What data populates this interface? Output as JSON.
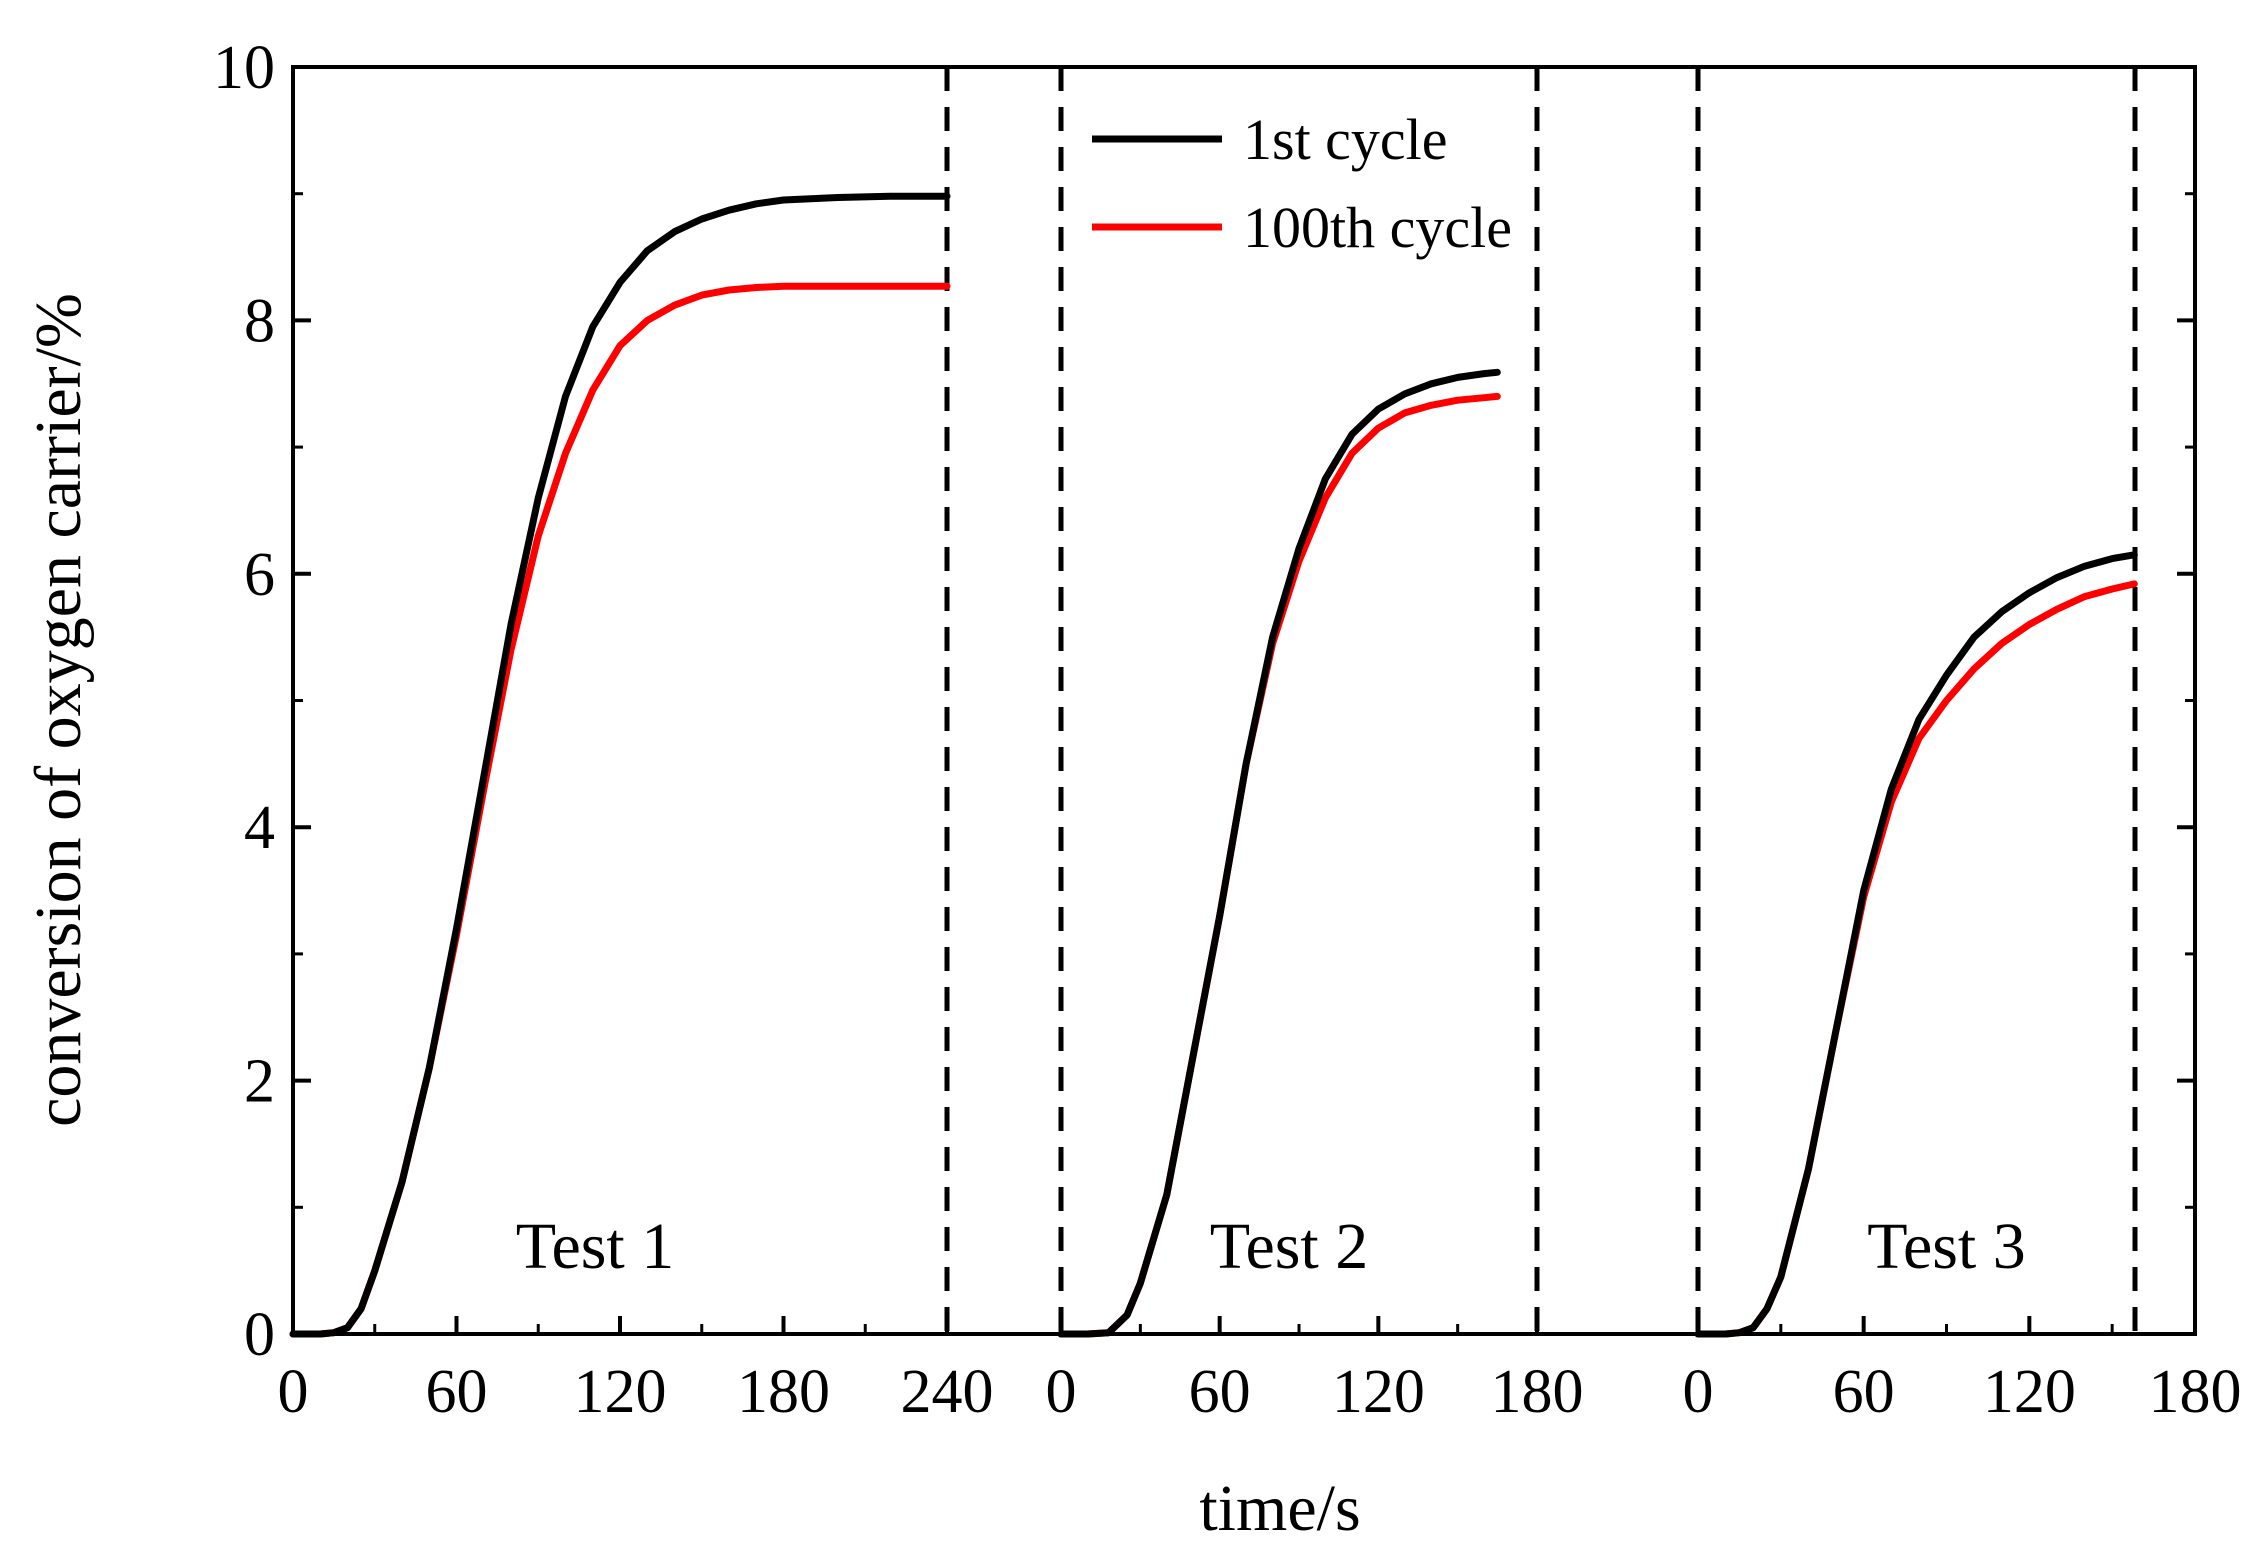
{
  "chart_data": {
    "type": "line",
    "xlabel": "time/s",
    "ylabel": "conversion of oxygen carrier/%",
    "ylim": [
      0,
      10
    ],
    "yticks": [
      0,
      2,
      4,
      6,
      8,
      10
    ],
    "legend": {
      "placement": "top-center",
      "entries": [
        {
          "name": "1st cycle",
          "color": "#000000"
        },
        {
          "name": "100th cycle",
          "color": "#ff0000"
        }
      ]
    },
    "panels": [
      {
        "label": "Test 1",
        "xlim": [
          0,
          240
        ],
        "xticks": [
          0,
          60,
          120,
          180,
          240
        ],
        "series": [
          {
            "name": "1st cycle",
            "color": "#000000",
            "points": [
              [
                0,
                0
              ],
              [
                10,
                0
              ],
              [
                15,
                0.01
              ],
              [
                20,
                0.05
              ],
              [
                25,
                0.2
              ],
              [
                30,
                0.5
              ],
              [
                40,
                1.2
              ],
              [
                50,
                2.1
              ],
              [
                60,
                3.2
              ],
              [
                70,
                4.4
              ],
              [
                80,
                5.6
              ],
              [
                90,
                6.6
              ],
              [
                100,
                7.4
              ],
              [
                110,
                7.95
              ],
              [
                120,
                8.3
              ],
              [
                130,
                8.55
              ],
              [
                140,
                8.7
              ],
              [
                150,
                8.8
              ],
              [
                160,
                8.87
              ],
              [
                170,
                8.92
              ],
              [
                180,
                8.95
              ],
              [
                200,
                8.97
              ],
              [
                220,
                8.98
              ],
              [
                240,
                8.98
              ]
            ]
          },
          {
            "name": "100th cycle",
            "color": "#ff0000",
            "points": [
              [
                0,
                0
              ],
              [
                10,
                0
              ],
              [
                15,
                0.01
              ],
              [
                20,
                0.05
              ],
              [
                25,
                0.2
              ],
              [
                30,
                0.5
              ],
              [
                40,
                1.2
              ],
              [
                50,
                2.1
              ],
              [
                60,
                3.15
              ],
              [
                70,
                4.3
              ],
              [
                80,
                5.4
              ],
              [
                90,
                6.3
              ],
              [
                100,
                6.95
              ],
              [
                110,
                7.45
              ],
              [
                120,
                7.8
              ],
              [
                130,
                8.0
              ],
              [
                140,
                8.12
              ],
              [
                150,
                8.2
              ],
              [
                160,
                8.24
              ],
              [
                170,
                8.26
              ],
              [
                180,
                8.27
              ],
              [
                200,
                8.27
              ],
              [
                240,
                8.27
              ]
            ]
          }
        ]
      },
      {
        "label": "Test 2",
        "xlim": [
          0,
          180
        ],
        "xticks": [
          0,
          60,
          120,
          180
        ],
        "series": [
          {
            "name": "1st cycle",
            "color": "#000000",
            "points": [
              [
                0,
                0
              ],
              [
                10,
                0
              ],
              [
                18,
                0.01
              ],
              [
                25,
                0.15
              ],
              [
                30,
                0.4
              ],
              [
                40,
                1.1
              ],
              [
                50,
                2.2
              ],
              [
                60,
                3.3
              ],
              [
                70,
                4.5
              ],
              [
                80,
                5.5
              ],
              [
                90,
                6.2
              ],
              [
                100,
                6.75
              ],
              [
                110,
                7.1
              ],
              [
                120,
                7.3
              ],
              [
                130,
                7.42
              ],
              [
                140,
                7.5
              ],
              [
                150,
                7.55
              ],
              [
                160,
                7.58
              ],
              [
                165,
                7.59
              ]
            ]
          },
          {
            "name": "100th cycle",
            "color": "#ff0000",
            "points": [
              [
                0,
                0
              ],
              [
                10,
                0
              ],
              [
                18,
                0.01
              ],
              [
                25,
                0.15
              ],
              [
                30,
                0.4
              ],
              [
                40,
                1.1
              ],
              [
                50,
                2.2
              ],
              [
                60,
                3.3
              ],
              [
                70,
                4.5
              ],
              [
                80,
                5.45
              ],
              [
                90,
                6.1
              ],
              [
                100,
                6.6
              ],
              [
                110,
                6.95
              ],
              [
                120,
                7.15
              ],
              [
                130,
                7.27
              ],
              [
                140,
                7.33
              ],
              [
                150,
                7.37
              ],
              [
                160,
                7.39
              ],
              [
                165,
                7.4
              ]
            ]
          }
        ]
      },
      {
        "label": "Test 3",
        "xlim": [
          0,
          180
        ],
        "xticks": [
          0,
          60,
          120,
          180
        ],
        "series": [
          {
            "name": "1st cycle",
            "color": "#000000",
            "points": [
              [
                0,
                0
              ],
              [
                10,
                0
              ],
              [
                15,
                0.01
              ],
              [
                20,
                0.05
              ],
              [
                25,
                0.2
              ],
              [
                30,
                0.45
              ],
              [
                40,
                1.3
              ],
              [
                50,
                2.4
              ],
              [
                60,
                3.5
              ],
              [
                70,
                4.3
              ],
              [
                80,
                4.85
              ],
              [
                90,
                5.2
              ],
              [
                100,
                5.5
              ],
              [
                110,
                5.7
              ],
              [
                120,
                5.85
              ],
              [
                130,
                5.97
              ],
              [
                140,
                6.06
              ],
              [
                150,
                6.12
              ],
              [
                158,
                6.15
              ]
            ]
          },
          {
            "name": "100th cycle",
            "color": "#ff0000",
            "points": [
              [
                0,
                0
              ],
              [
                10,
                0
              ],
              [
                15,
                0.01
              ],
              [
                20,
                0.05
              ],
              [
                25,
                0.2
              ],
              [
                30,
                0.45
              ],
              [
                40,
                1.3
              ],
              [
                50,
                2.4
              ],
              [
                60,
                3.45
              ],
              [
                70,
                4.2
              ],
              [
                80,
                4.7
              ],
              [
                90,
                5.0
              ],
              [
                100,
                5.25
              ],
              [
                110,
                5.45
              ],
              [
                120,
                5.6
              ],
              [
                130,
                5.72
              ],
              [
                140,
                5.82
              ],
              [
                150,
                5.88
              ],
              [
                158,
                5.92
              ]
            ]
          }
        ]
      }
    ]
  }
}
